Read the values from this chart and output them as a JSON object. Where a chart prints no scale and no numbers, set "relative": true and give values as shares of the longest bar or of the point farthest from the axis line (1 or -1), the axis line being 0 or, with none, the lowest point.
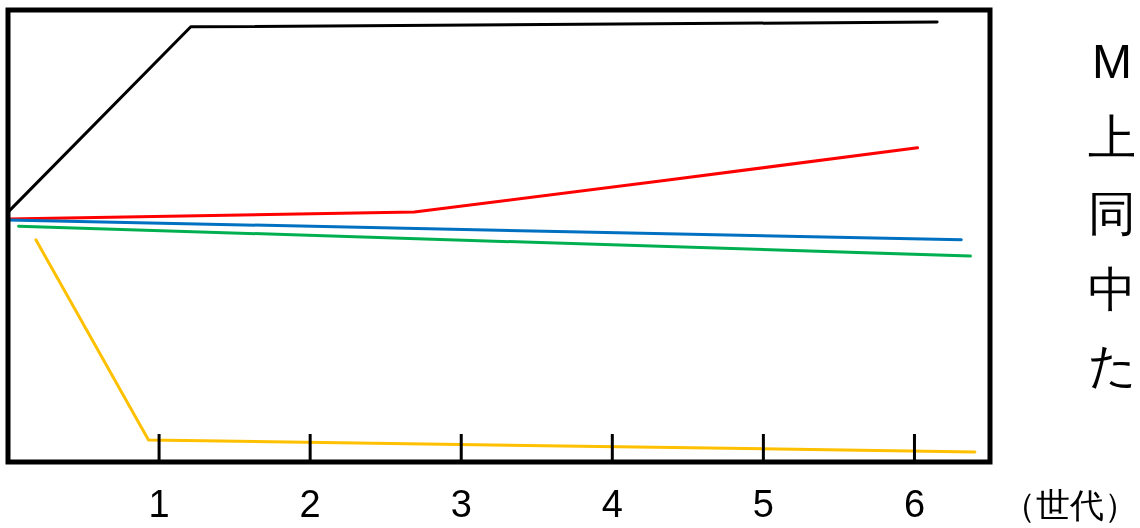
{
  "chart_data": {
    "type": "line",
    "relative": true,
    "xlabel": "（世代）",
    "xlim": [
      0,
      6.5
    ],
    "xticks": [
      1,
      2,
      3,
      4,
      5,
      6
    ],
    "grid": false,
    "line_style": "solid",
    "annotations": [
      "M",
      "上",
      "同",
      "中",
      "た"
    ],
    "series": [
      {
        "color": "#000000",
        "x": [
          0,
          1.21,
          6.15
        ],
        "values": [
          0.568,
          0.989,
          1.0
        ]
      },
      {
        "color": "#ff0000",
        "x": [
          0,
          2.69,
          4.37,
          6.02
        ],
        "values": [
          0.552,
          0.568,
          0.641,
          0.714
        ]
      },
      {
        "color": "#0070c0",
        "x": [
          0,
          6.31
        ],
        "values": [
          0.55,
          0.505
        ]
      },
      {
        "color": "#00b050",
        "x": [
          0.07,
          6.37
        ],
        "values": [
          0.536,
          0.468
        ]
      },
      {
        "color": "#ffc000",
        "x": [
          0.185,
          0.93,
          6.4
        ],
        "values": [
          0.505,
          0.05,
          0.023
        ]
      }
    ]
  }
}
